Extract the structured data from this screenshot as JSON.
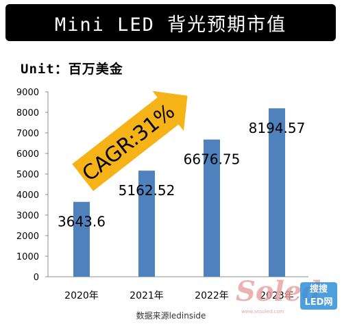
{
  "title": "Mini LED 背光预期市值",
  "unit_label": "Unit：百万美金",
  "source": "数据来源ledinside",
  "cagr_label": "CAGR:31%",
  "watermark": {
    "brand": "Soled",
    "badge_line1": "搜搜",
    "badge_line2": "LED网",
    "url": "www.sosoled.com"
  },
  "colors": {
    "bar": "#4f81bd",
    "arrow": "#f5b317",
    "axis": "#8c8c8c"
  },
  "chart_data": {
    "type": "bar",
    "categories": [
      "2020年",
      "2021年",
      "2022年",
      "2023年"
    ],
    "values": [
      3643.6,
      5162.52,
      6676.75,
      8194.57
    ],
    "data_labels": [
      "3643.6",
      "5162.52",
      "6676.75",
      "8194.57"
    ],
    "title": "Mini LED 背光预期市值",
    "ylim": [
      0,
      9000
    ],
    "yticks": [
      0,
      1000,
      2000,
      3000,
      4000,
      5000,
      6000,
      7000,
      8000,
      9000
    ],
    "grid": false,
    "legend": "none"
  }
}
